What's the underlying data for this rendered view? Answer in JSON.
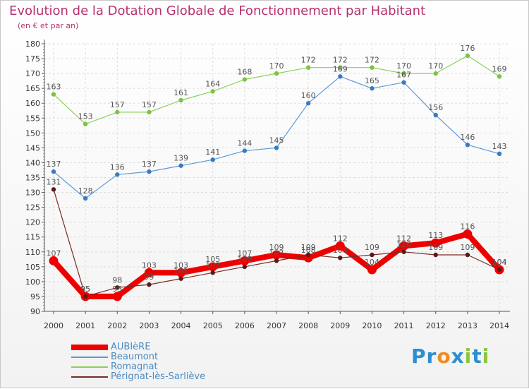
{
  "title": "Evolution de la Dotation Globale de Fonctionnement par Habitant",
  "subtitle": "(en € et par an)",
  "logo_text": "Proxiti",
  "chart_data": {
    "type": "line",
    "title": "Evolution de la Dotation Globale de Fonctionnement par Habitant",
    "subtitle": "(en € et par an)",
    "x": [
      2000,
      2001,
      2002,
      2003,
      2004,
      2005,
      2006,
      2007,
      2008,
      2009,
      2010,
      2011,
      2012,
      2013,
      2014
    ],
    "ylim": [
      90,
      180
    ],
    "yticks": [
      90,
      95,
      100,
      105,
      110,
      115,
      120,
      125,
      130,
      135,
      140,
      145,
      150,
      155,
      160,
      165,
      170,
      175,
      180
    ],
    "grid": true,
    "legend_position": "bottom-left",
    "series": [
      {
        "name": "AUBIèRE",
        "color": "#ee0000",
        "values": [
          107,
          95,
          95,
          103,
          103,
          105,
          107,
          109,
          108,
          112,
          104,
          112,
          113,
          116,
          104
        ]
      },
      {
        "name": "Beaumont",
        "color": "#5b9bd5",
        "values": [
          137,
          128,
          136,
          137,
          139,
          141,
          144,
          145,
          160,
          169,
          165,
          167,
          156,
          146,
          143
        ]
      },
      {
        "name": "Romagnat",
        "color": "#8cd157",
        "values": [
          163,
          153,
          157,
          157,
          161,
          164,
          168,
          170,
          172,
          172,
          172,
          170,
          170,
          176,
          169
        ]
      },
      {
        "name": "Pérignat-lès-Sarliève",
        "color": "#7a2a2a",
        "values": [
          131,
          95,
          98,
          99,
          101,
          103,
          105,
          107,
          109,
          108,
          109,
          110,
          109,
          109,
          104
        ]
      }
    ]
  }
}
